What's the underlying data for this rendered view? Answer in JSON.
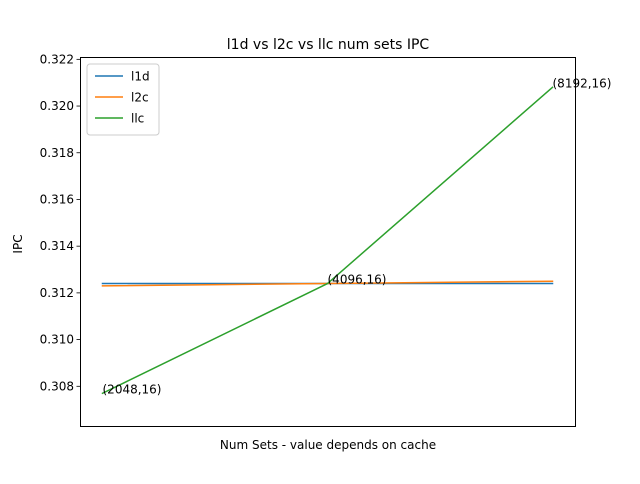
{
  "chart_data": {
    "type": "line",
    "title": "l1d vs l2c vs llc num sets IPC",
    "xlabel": "Num Sets - value depends on cache",
    "ylabel": "IPC",
    "x": [
      0,
      1,
      2
    ],
    "xlim": [
      -0.1,
      2.1
    ],
    "ylim": [
      0.3063,
      0.3221
    ],
    "yticks": [
      0.308,
      0.31,
      0.312,
      0.314,
      0.316,
      0.318,
      0.32,
      0.322
    ],
    "ytick_labels": [
      "0.308",
      "0.310",
      "0.312",
      "0.314",
      "0.316",
      "0.318",
      "0.320",
      "0.322"
    ],
    "xticks_visible": false,
    "grid": false,
    "legend_position": "top-left",
    "series": [
      {
        "name": "l1d",
        "color": "#1f77b4",
        "values": [
          0.3124,
          0.3124,
          0.3124
        ]
      },
      {
        "name": "l2c",
        "color": "#ff7f0e",
        "values": [
          0.3123,
          0.3124,
          0.3125
        ]
      },
      {
        "name": "llc",
        "color": "#2ca02c",
        "values": [
          0.3077,
          0.3124,
          0.3208
        ]
      }
    ],
    "annotations": [
      {
        "text": "(2048,16)",
        "x": 0,
        "y": 0.3077
      },
      {
        "text": "(4096,16)",
        "x": 1,
        "y": 0.3124
      },
      {
        "text": "(8192,16)",
        "x": 2,
        "y": 0.3208
      }
    ]
  }
}
